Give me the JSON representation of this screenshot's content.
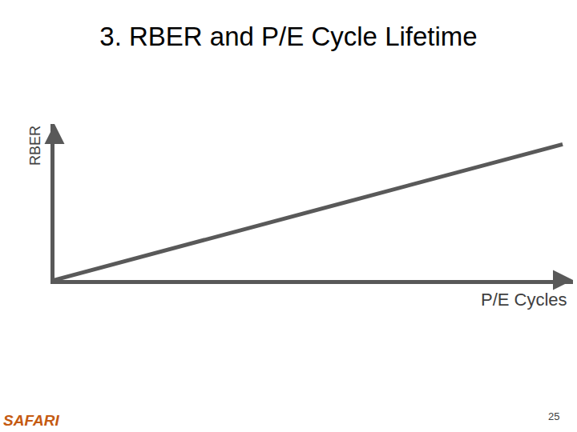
{
  "chart_data": {
    "type": "line",
    "title": "3. RBER and P/E Cycle Lifetime",
    "x_label": "P/E Cycles",
    "y_label": "RBER",
    "x": [
      0,
      9.8
    ],
    "values": [
      0,
      8.7
    ],
    "color": "#595959",
    "xlim": [
      0,
      10
    ],
    "ylim": [
      0,
      10
    ],
    "tick_labels": false,
    "grid": false
  },
  "footer": {
    "logo": "SAFARI",
    "page": 25
  }
}
